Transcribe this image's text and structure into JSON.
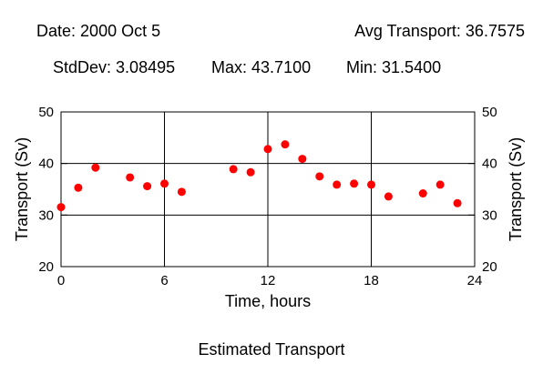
{
  "stats": {
    "date_label": "Date:",
    "date_value": "2000 Oct 5",
    "avg_label": "Avg Transport:",
    "avg_value": "36.7575",
    "std_label": "StdDev:",
    "std_value": "3.08495",
    "max_label": "Max:",
    "max_value": "43.7100",
    "min_label": "Min:",
    "min_value": "31.5400"
  },
  "caption": "Estimated Transport",
  "chart_data": {
    "type": "scatter",
    "title": "",
    "xlabel": "Time, hours",
    "ylabel": "Transport (Sv)",
    "xlim": [
      0,
      24
    ],
    "ylim": [
      20,
      50
    ],
    "xticks": [
      0,
      6,
      12,
      18,
      24
    ],
    "yticks": [
      20,
      30,
      40,
      50
    ],
    "grid": true,
    "marker_color": "#ff0000",
    "x": [
      0,
      1,
      2,
      4,
      5,
      6,
      7,
      10,
      11,
      12,
      13,
      14,
      15,
      16,
      17,
      18,
      19,
      21,
      22,
      23
    ],
    "y": [
      31.54,
      35.3,
      39.2,
      37.3,
      35.6,
      36.1,
      34.5,
      38.9,
      38.3,
      42.8,
      43.71,
      40.9,
      37.5,
      35.9,
      36.1,
      35.9,
      33.6,
      34.2,
      35.9,
      32.3
    ]
  }
}
